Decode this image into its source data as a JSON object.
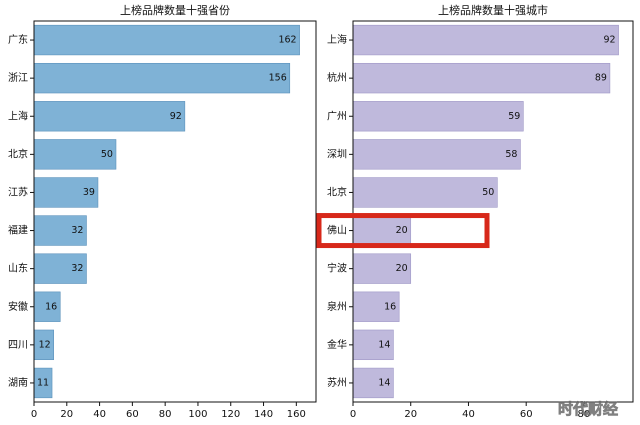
{
  "chart_data": [
    {
      "type": "bar",
      "orientation": "horizontal",
      "title": "上榜品牌数量十强省份",
      "categories": [
        "广东",
        "浙江",
        "上海",
        "北京",
        "江苏",
        "福建",
        "山东",
        "安徽",
        "四川",
        "湖南"
      ],
      "values": [
        162,
        156,
        92,
        50,
        39,
        32,
        32,
        16,
        12,
        11
      ],
      "xlim": [
        0,
        172
      ],
      "xticks": [
        0,
        20,
        40,
        60,
        80,
        100,
        120,
        140,
        160
      ],
      "grid": false,
      "bar_color": "#7fb2d6",
      "bar_edge_color": "#5a90ba"
    },
    {
      "type": "bar",
      "orientation": "horizontal",
      "title": "上榜品牌数量十强城市",
      "categories": [
        "上海",
        "杭州",
        "广州",
        "深圳",
        "北京",
        "佛山",
        "宁波",
        "泉州",
        "金华",
        "苏州"
      ],
      "values": [
        92,
        89,
        59,
        58,
        50,
        20,
        20,
        16,
        14,
        14
      ],
      "xlim": [
        0,
        97
      ],
      "xticks": [
        0,
        20,
        40,
        60,
        80
      ],
      "grid": false,
      "bar_color": "#bfb9dc",
      "bar_edge_color": "#9e97c6",
      "highlight": "佛山",
      "highlight_color": "#d7281a"
    }
  ],
  "watermark": {
    "text": "时代财经"
  }
}
